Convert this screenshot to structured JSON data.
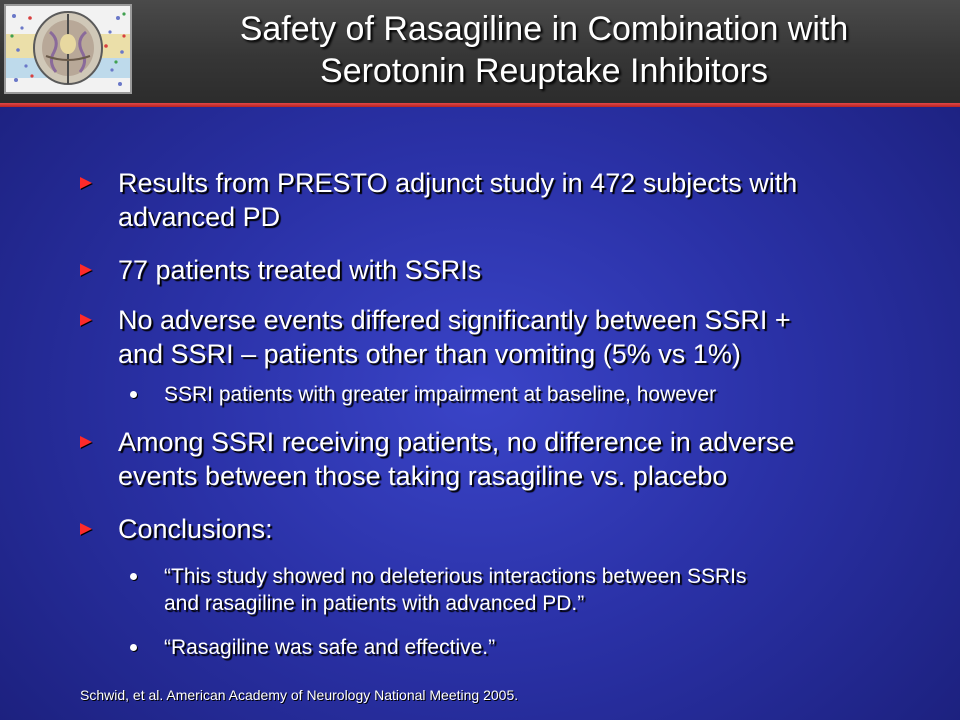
{
  "slide": {
    "title_lines": [
      "Safety of Rasagiline in Combination with",
      "Serotonin Reuptake Inhibitors"
    ],
    "bullets": [
      {
        "lines": [
          "Results from PRESTO adjunct study in 472 subjects with",
          "advanced PD"
        ]
      },
      {
        "lines": [
          "77 patients treated with SSRIs"
        ]
      },
      {
        "lines": [
          "No adverse events differed significantly between SSRI +",
          "and SSRI – patients other than vomiting (5% vs 1%)"
        ]
      },
      {
        "lines": [
          "SSRI patients with greater impairment at baseline, however"
        ]
      },
      {
        "lines": [
          "Among SSRI receiving patients, no difference in adverse",
          "events between those taking rasagiline vs. placebo"
        ]
      },
      {
        "lines": [
          "Conclusions:"
        ]
      },
      {
        "lines": [
          "“This study showed no deleterious interactions between  SSRIs",
          "and rasagiline in patients with advanced PD.”"
        ]
      },
      {
        "lines": [
          "“Rasagiline was safe and effective.”"
        ]
      }
    ],
    "footnote": "Schwid, et al.  American Academy of Neurology National Meeting 2005.",
    "colors": {
      "background": "#2a31a6",
      "header": "#363636",
      "header_rule": "#c82a2a",
      "bullet_arrow": "#ff2a2a",
      "text": "#ffffff"
    },
    "logo_icon": "brain-scan-icon"
  }
}
